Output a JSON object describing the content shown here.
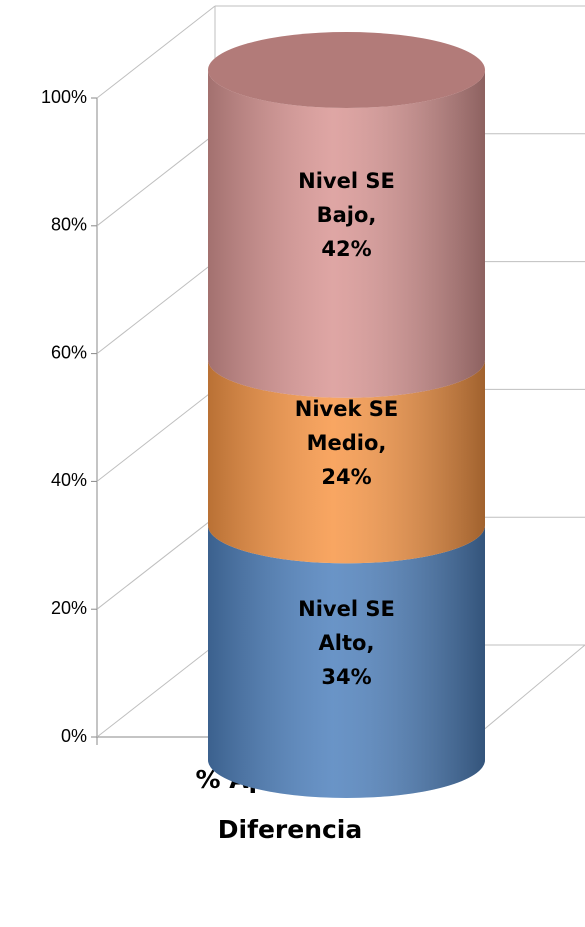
{
  "chart_data": {
    "type": "bar",
    "stacked": true,
    "categories": [
      "% Aporte a la Diferencia"
    ],
    "series": [
      {
        "name": "Nivel SE Alto",
        "color": "#4f81bd",
        "values": [
          34
        ],
        "value_labels": [
          "34%"
        ]
      },
      {
        "name": "Nivek SE Medio",
        "color": "#f79646",
        "values": [
          24
        ],
        "value_labels": [
          "24%"
        ]
      },
      {
        "name": "Nivel SE Bajo",
        "color": "#d99694",
        "values": [
          42
        ],
        "value_labels": [
          "42%"
        ]
      }
    ],
    "data_label_separator": ",",
    "ylim": [
      0,
      100
    ],
    "yticks": [
      {
        "value": 0,
        "label": "0%"
      },
      {
        "value": 20,
        "label": "20%"
      },
      {
        "value": 40,
        "label": "40%"
      },
      {
        "value": 60,
        "label": "60%"
      },
      {
        "value": 80,
        "label": "80%"
      },
      {
        "value": 100,
        "label": "100%"
      }
    ],
    "grid": true
  }
}
